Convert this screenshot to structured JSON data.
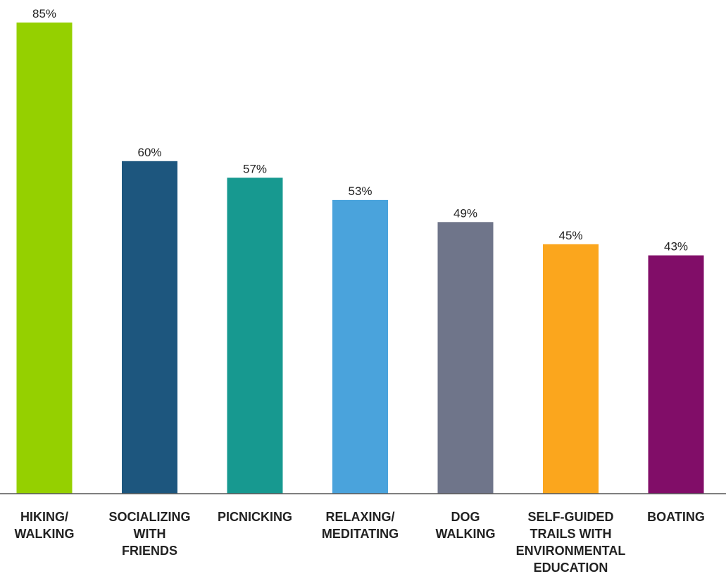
{
  "chart_data": {
    "type": "bar",
    "categories": [
      [
        "HIKING/",
        "WALKING"
      ],
      [
        "SOCIALIZING",
        "WITH",
        "FRIENDS"
      ],
      [
        "PICNICKING"
      ],
      [
        "RELAXING/",
        "MEDITATING"
      ],
      [
        "DOG",
        "WALKING"
      ],
      [
        "SELF-GUIDED",
        "TRAILS WITH",
        "ENVIRONMENTAL",
        "EDUCATION"
      ],
      [
        "BOATING"
      ]
    ],
    "values": [
      85,
      60,
      57,
      53,
      49,
      45,
      43
    ],
    "value_labels": [
      "85%",
      "60%",
      "57%",
      "53%",
      "49%",
      "45%",
      "43%"
    ],
    "colors": [
      "#95d000",
      "#1d567e",
      "#179990",
      "#4aa3dc",
      "#6f758a",
      "#fba61d",
      "#810d68"
    ],
    "ylim": [
      0,
      85
    ],
    "grid": false,
    "legend": "none"
  }
}
